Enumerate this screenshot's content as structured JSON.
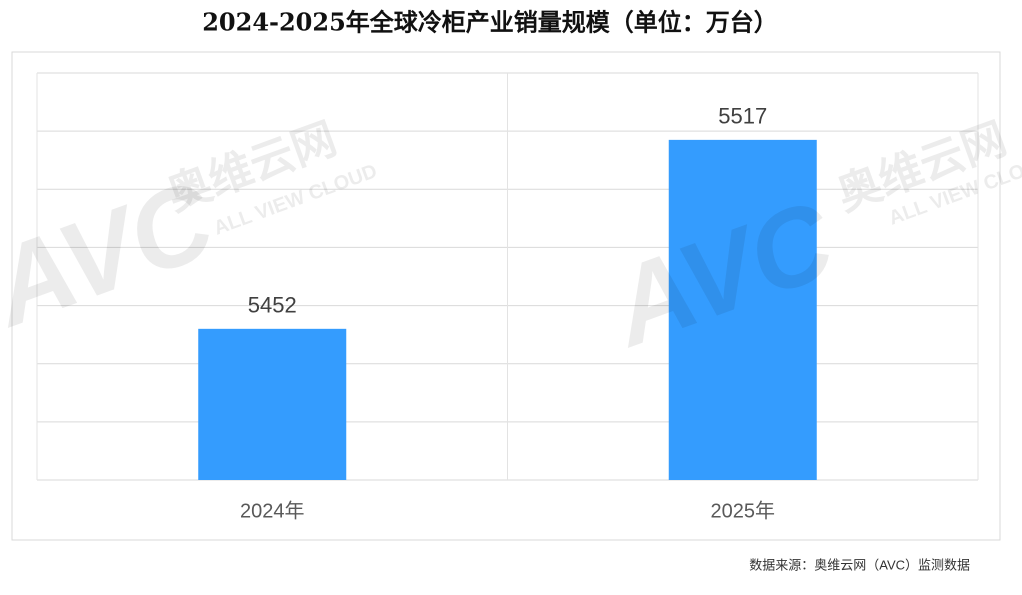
{
  "chart_data": {
    "type": "bar",
    "title": "2024-2025年全球冷柜产业销量规模（单位：万台）",
    "categories": [
      "2024年",
      "2025年"
    ],
    "values": [
      5452,
      5517
    ],
    "color": "#349cfe",
    "ylim": [
      5400,
      5540
    ],
    "yticks": [
      5400,
      5420,
      5440,
      5460,
      5480,
      5500,
      5520,
      5540
    ],
    "grid": true,
    "source": "数据来源：奥维云网（AVC）监测数据",
    "watermark": {
      "brand": "奥维云网",
      "tagline": "ALL VIEW CLOUD",
      "logo": "AVC"
    }
  }
}
